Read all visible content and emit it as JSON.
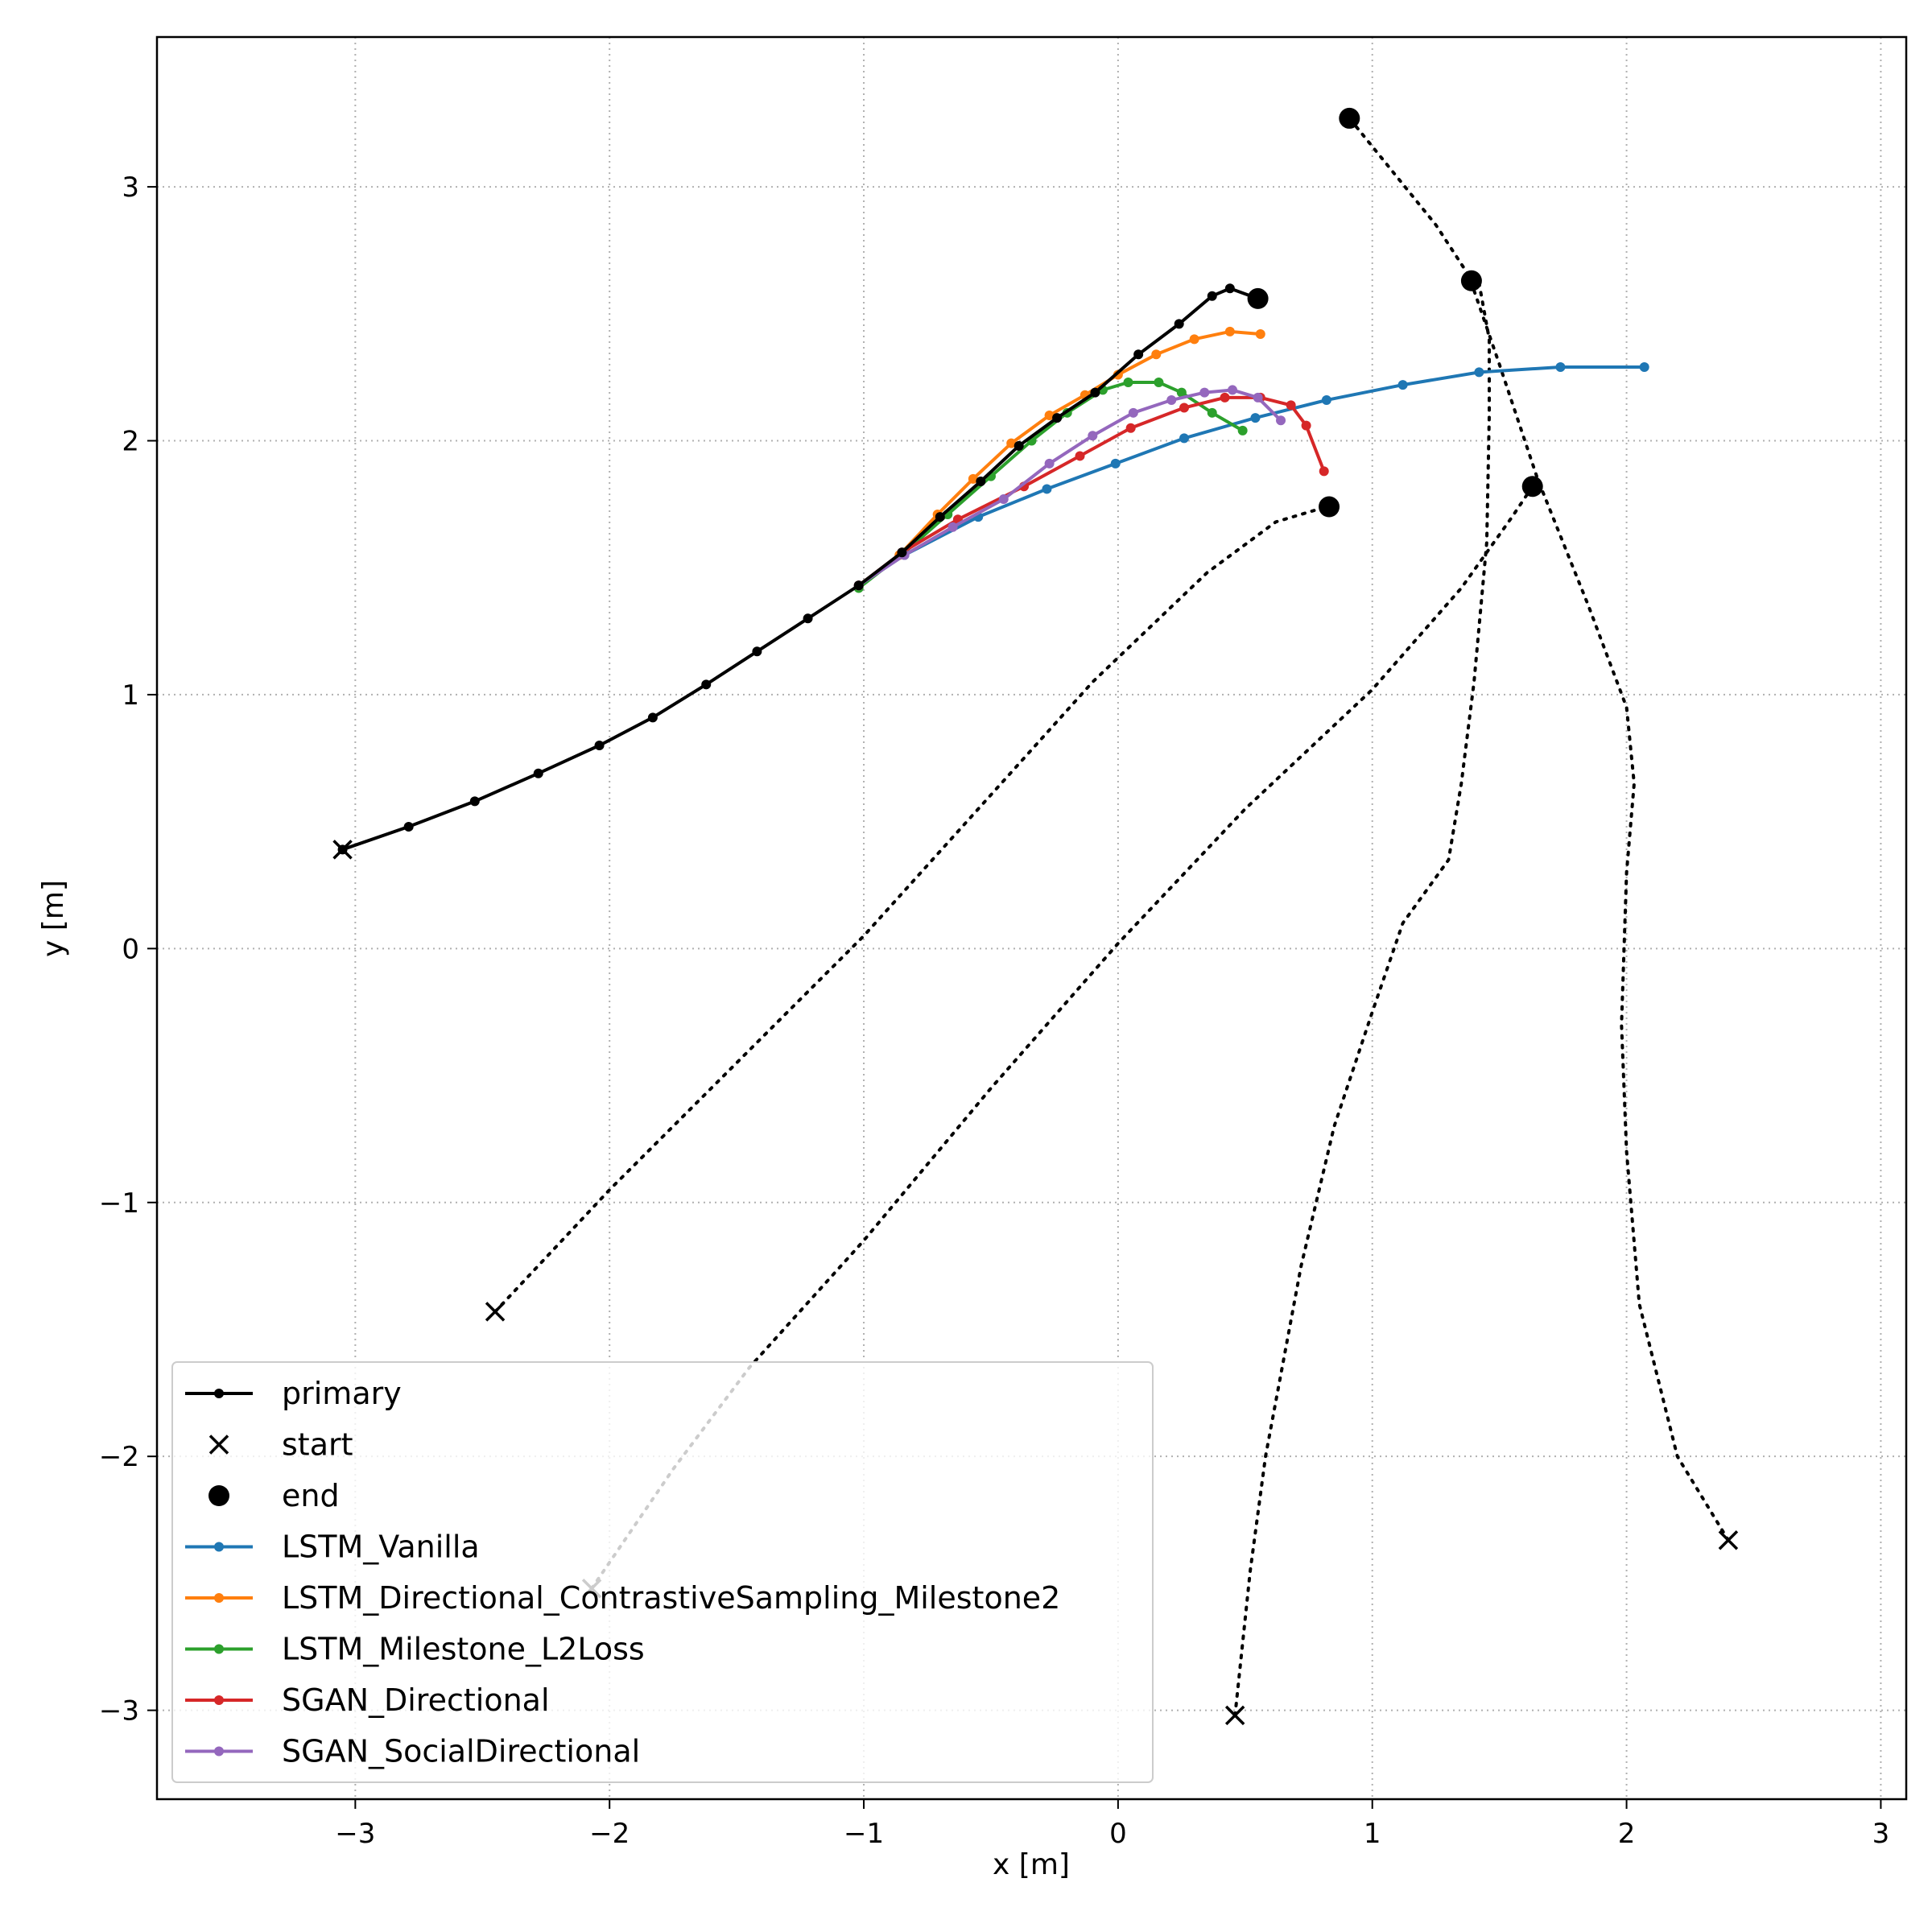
{
  "chart_data": {
    "type": "line",
    "xlabel": "x [m]",
    "ylabel": "y [m]",
    "xlim": [
      -3.78,
      3.1
    ],
    "ylim": [
      -3.35,
      3.59
    ],
    "xticks": [
      -3,
      -2,
      -1,
      0,
      1,
      2,
      3
    ],
    "yticks": [
      -3,
      -2,
      -1,
      0,
      1,
      2,
      3
    ],
    "tick_labels_x": [
      "−3",
      "−2",
      "−1",
      "0",
      "1",
      "2",
      "3"
    ],
    "tick_labels_y": [
      "−3",
      "−2",
      "−1",
      "0",
      "1",
      "2",
      "3"
    ],
    "grid": true,
    "legend_position": "lower-left",
    "legend": [
      {
        "label": "primary",
        "kind": "line-dot",
        "color": "#000000"
      },
      {
        "label": "start",
        "kind": "x-marker",
        "color": "#000000"
      },
      {
        "label": "end",
        "kind": "big-dot",
        "color": "#000000"
      },
      {
        "label": "LSTM_Vanilla",
        "kind": "line-dot",
        "color": "#1f77b4"
      },
      {
        "label": "LSTM_Directional_ContrastiveSampling_Milestone2",
        "kind": "line-dot",
        "color": "#ff7f0e"
      },
      {
        "label": "LSTM_Milestone_L2Loss",
        "kind": "line-dot",
        "color": "#2ca02c"
      },
      {
        "label": "SGAN_Directional",
        "kind": "line-dot",
        "color": "#d62728"
      },
      {
        "label": "SGAN_SocialDirectional",
        "kind": "line-dot",
        "color": "#9467bd"
      }
    ],
    "primary": {
      "color": "#000000",
      "points": [
        [
          -3.05,
          0.39
        ],
        [
          -2.79,
          0.48
        ],
        [
          -2.53,
          0.58
        ],
        [
          -2.28,
          0.69
        ],
        [
          -2.04,
          0.8
        ],
        [
          -1.83,
          0.91
        ],
        [
          -1.62,
          1.04
        ],
        [
          -1.42,
          1.17
        ],
        [
          -1.22,
          1.3
        ],
        [
          -1.02,
          1.43
        ],
        [
          -0.85,
          1.56
        ],
        [
          -0.7,
          1.7
        ],
        [
          -0.54,
          1.84
        ],
        [
          -0.39,
          1.98
        ],
        [
          -0.24,
          2.09
        ],
        [
          -0.09,
          2.19
        ],
        [
          0.08,
          2.34
        ],
        [
          0.24,
          2.46
        ],
        [
          0.37,
          2.57
        ],
        [
          0.44,
          2.6
        ],
        [
          0.55,
          2.56
        ]
      ]
    },
    "series": [
      {
        "name": "LSTM_Vanilla",
        "color": "#1f77b4",
        "points": [
          [
            -1.02,
            1.43
          ],
          [
            -0.84,
            1.55
          ],
          [
            -0.55,
            1.7
          ],
          [
            -0.28,
            1.81
          ],
          [
            -0.01,
            1.91
          ],
          [
            0.26,
            2.01
          ],
          [
            0.54,
            2.09
          ],
          [
            0.82,
            2.16
          ],
          [
            1.12,
            2.22
          ],
          [
            1.42,
            2.27
          ],
          [
            1.74,
            2.29
          ],
          [
            2.07,
            2.29
          ]
        ]
      },
      {
        "name": "LSTM_Directional_ContrastiveSampling_Milestone2",
        "color": "#ff7f0e",
        "points": [
          [
            -1.02,
            1.43
          ],
          [
            -0.86,
            1.55
          ],
          [
            -0.71,
            1.71
          ],
          [
            -0.57,
            1.85
          ],
          [
            -0.42,
            1.99
          ],
          [
            -0.27,
            2.1
          ],
          [
            -0.13,
            2.18
          ],
          [
            0.0,
            2.26
          ],
          [
            0.15,
            2.34
          ],
          [
            0.3,
            2.4
          ],
          [
            0.44,
            2.43
          ],
          [
            0.56,
            2.42
          ]
        ]
      },
      {
        "name": "LSTM_Milestone_L2Loss",
        "color": "#2ca02c",
        "points": [
          [
            -1.02,
            1.42
          ],
          [
            -0.84,
            1.56
          ],
          [
            -0.67,
            1.71
          ],
          [
            -0.5,
            1.86
          ],
          [
            -0.34,
            2.0
          ],
          [
            -0.2,
            2.11
          ],
          [
            -0.06,
            2.2
          ],
          [
            0.04,
            2.23
          ],
          [
            0.16,
            2.23
          ],
          [
            0.25,
            2.19
          ],
          [
            0.37,
            2.11
          ],
          [
            0.49,
            2.04
          ]
        ]
      },
      {
        "name": "SGAN_Directional",
        "color": "#d62728",
        "points": [
          [
            -1.02,
            1.43
          ],
          [
            -0.85,
            1.56
          ],
          [
            -0.63,
            1.69
          ],
          [
            -0.37,
            1.82
          ],
          [
            -0.15,
            1.94
          ],
          [
            0.05,
            2.05
          ],
          [
            0.26,
            2.13
          ],
          [
            0.42,
            2.17
          ],
          [
            0.56,
            2.17
          ],
          [
            0.68,
            2.14
          ],
          [
            0.74,
            2.06
          ],
          [
            0.81,
            1.88
          ]
        ]
      },
      {
        "name": "SGAN_SocialDirectional",
        "color": "#9467bd",
        "points": [
          [
            -1.02,
            1.43
          ],
          [
            -0.84,
            1.55
          ],
          [
            -0.65,
            1.66
          ],
          [
            -0.45,
            1.77
          ],
          [
            -0.27,
            1.91
          ],
          [
            -0.1,
            2.02
          ],
          [
            0.06,
            2.11
          ],
          [
            0.21,
            2.16
          ],
          [
            0.34,
            2.19
          ],
          [
            0.45,
            2.2
          ],
          [
            0.55,
            2.17
          ],
          [
            0.64,
            2.08
          ]
        ]
      }
    ],
    "neighbors": [
      {
        "points": [
          [
            -2.45,
            -1.43
          ],
          [
            -2.0,
            -0.95
          ],
          [
            -1.5,
            -0.45
          ],
          [
            -1.0,
            0.05
          ],
          [
            -0.55,
            0.55
          ],
          [
            -0.1,
            1.05
          ],
          [
            0.35,
            1.48
          ],
          [
            0.62,
            1.68
          ],
          [
            0.82,
            1.74
          ]
        ],
        "end": [
          0.83,
          1.74
        ]
      },
      {
        "points": [
          [
            -2.07,
            -2.52
          ],
          [
            -1.75,
            -2.05
          ],
          [
            -1.45,
            -1.65
          ],
          [
            -1.0,
            -1.15
          ],
          [
            -0.5,
            -0.55
          ],
          [
            0.0,
            0.02
          ],
          [
            0.5,
            0.55
          ],
          [
            1.0,
            1.02
          ],
          [
            1.35,
            1.42
          ],
          [
            1.55,
            1.7
          ],
          [
            1.63,
            1.82
          ]
        ],
        "end": [
          1.63,
          1.82
        ]
      },
      {
        "points": [
          [
            0.46,
            -3.02
          ],
          [
            0.52,
            -2.45
          ],
          [
            0.58,
            -2.0
          ],
          [
            0.72,
            -1.25
          ],
          [
            0.85,
            -0.7
          ],
          [
            1.0,
            -0.25
          ],
          [
            1.12,
            0.1
          ],
          [
            1.3,
            0.35
          ],
          [
            1.35,
            0.65
          ],
          [
            1.4,
            1.05
          ],
          [
            1.45,
            1.6
          ],
          [
            1.46,
            2.1
          ],
          [
            1.46,
            2.4
          ],
          [
            1.42,
            2.62
          ]
        ],
        "end": [
          1.39,
          2.63
        ]
      },
      {
        "points": [
          [
            2.4,
            -2.33
          ],
          [
            2.2,
            -2.0
          ],
          [
            2.05,
            -1.4
          ],
          [
            2.0,
            -0.8
          ],
          [
            1.98,
            -0.3
          ],
          [
            2.0,
            0.3
          ],
          [
            2.03,
            0.65
          ],
          [
            2.0,
            0.95
          ],
          [
            1.85,
            1.35
          ],
          [
            1.65,
            1.85
          ],
          [
            1.5,
            2.3
          ],
          [
            1.38,
            2.65
          ],
          [
            1.25,
            2.85
          ],
          [
            0.91,
            3.27
          ]
        ],
        "end": [
          0.91,
          3.27
        ]
      }
    ],
    "start_markers": [
      [
        -3.05,
        0.39
      ],
      [
        -2.45,
        -1.43
      ],
      [
        -2.07,
        -2.52
      ],
      [
        0.46,
        -3.02
      ],
      [
        2.4,
        -2.33
      ]
    ]
  }
}
